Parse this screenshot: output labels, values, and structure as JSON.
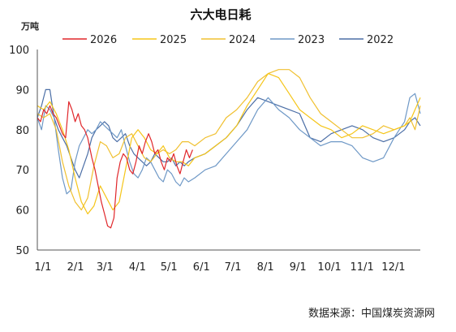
{
  "chart_data": {
    "type": "line",
    "title": "六大电日耗",
    "unit_label": "万吨",
    "source": "数据来源：中国煤炭资源网",
    "x_ticks": [
      "1/1",
      "2/1",
      "3/1",
      "4/1",
      "5/1",
      "6/1",
      "7/1",
      "8/1",
      "9/1",
      "10/1",
      "11/1",
      "12/1"
    ],
    "y_ticks": [
      "50",
      "60",
      "70",
      "80",
      "90",
      "100"
    ],
    "ylim": [
      50,
      100
    ],
    "xlim_days": [
      0,
      365
    ],
    "legend_position": "top",
    "grid": false,
    "series": [
      {
        "name": "2026",
        "color": "#e0262a",
        "x": [
          0,
          3,
          6,
          9,
          12,
          15,
          18,
          21,
          24,
          27,
          30,
          33,
          36,
          39,
          42,
          45,
          48,
          52,
          55,
          58,
          61,
          64,
          67,
          70,
          73,
          76,
          79,
          82,
          85,
          88,
          91,
          94,
          97,
          100,
          103,
          106,
          109,
          112,
          115,
          118,
          121,
          124,
          127,
          130,
          133,
          136,
          139,
          142,
          145,
          148
        ],
        "y": [
          83,
          82,
          85,
          84,
          86,
          84,
          83,
          81,
          79,
          78,
          87,
          85,
          82,
          84,
          81,
          80,
          78,
          73,
          70,
          66,
          62,
          59,
          56,
          55.5,
          58,
          68,
          72,
          74,
          73,
          70,
          69,
          72,
          76,
          74,
          77,
          79,
          77,
          74,
          75,
          72,
          70,
          73,
          72,
          74,
          71,
          69,
          72,
          75,
          73,
          75
        ]
      },
      {
        "name": "2025",
        "color": "#f5c518",
        "x": [
          0,
          6,
          12,
          18,
          24,
          30,
          36,
          42,
          48,
          54,
          60,
          66,
          72,
          78,
          84,
          90,
          96,
          102,
          108,
          114,
          120,
          126,
          132,
          138,
          144,
          150,
          160,
          170,
          180,
          190,
          200,
          210,
          220,
          230,
          240,
          250,
          260,
          270,
          280,
          290,
          300,
          310,
          320,
          330,
          340,
          350,
          355,
          360,
          365
        ],
        "y": [
          86,
          85,
          87,
          84,
          80,
          75,
          68,
          62,
          59,
          61,
          66,
          63,
          60,
          62,
          70,
          78,
          80,
          78,
          75,
          74,
          76,
          73,
          72,
          72,
          71,
          73,
          74,
          76,
          78,
          81,
          86,
          90,
          94,
          93,
          89,
          85,
          83,
          81,
          80,
          78,
          79,
          81,
          80,
          79,
          80,
          81,
          82,
          85,
          88
        ]
      },
      {
        "name": "2024",
        "color": "#f0c030",
        "x": [
          0,
          6,
          12,
          18,
          24,
          30,
          36,
          42,
          48,
          54,
          60,
          66,
          72,
          78,
          84,
          90,
          96,
          102,
          108,
          114,
          120,
          126,
          132,
          138,
          144,
          150,
          160,
          170,
          180,
          190,
          200,
          210,
          220,
          230,
          240,
          250,
          260,
          270,
          280,
          290,
          300,
          310,
          320,
          330,
          340,
          350,
          355,
          360,
          365
        ],
        "y": [
          84,
          83,
          84,
          80,
          72,
          66,
          62,
          60,
          63,
          71,
          77,
          76,
          73,
          74,
          78,
          79,
          76,
          73,
          72,
          74,
          75,
          74,
          75,
          77,
          77,
          76,
          78,
          79,
          83,
          85,
          88,
          92,
          94,
          95,
          95,
          93,
          88,
          84,
          82,
          80,
          78,
          78,
          79,
          81,
          80,
          81,
          83,
          80,
          86
        ]
      },
      {
        "name": "2023",
        "color": "#6e98c6",
        "x": [
          0,
          4,
          8,
          12,
          16,
          20,
          24,
          28,
          32,
          36,
          40,
          44,
          48,
          52,
          56,
          60,
          64,
          68,
          72,
          76,
          80,
          84,
          88,
          92,
          96,
          100,
          104,
          108,
          112,
          116,
          120,
          124,
          128,
          132,
          136,
          140,
          144,
          150,
          160,
          170,
          180,
          190,
          200,
          210,
          220,
          230,
          240,
          250,
          260,
          270,
          280,
          290,
          300,
          310,
          320,
          330,
          340,
          350,
          355,
          360,
          365
        ],
        "y": [
          83,
          80,
          86,
          85,
          83,
          75,
          68,
          64,
          65,
          72,
          76,
          78,
          80,
          79,
          80,
          82,
          81,
          80,
          79,
          78,
          80,
          76,
          72,
          69,
          68,
          70,
          73,
          72,
          70,
          68,
          67,
          70,
          69,
          67,
          66,
          68,
          67,
          68,
          70,
          71,
          74,
          77,
          80,
          85,
          88,
          85,
          83,
          80,
          78,
          76,
          77,
          77,
          76,
          73,
          72,
          73,
          78,
          82,
          88,
          89,
          84
        ]
      },
      {
        "name": "2022",
        "color": "#4b6ea6",
        "x": [
          0,
          4,
          8,
          12,
          16,
          20,
          24,
          28,
          32,
          36,
          40,
          44,
          48,
          52,
          56,
          60,
          64,
          68,
          72,
          76,
          80,
          84,
          88,
          92,
          96,
          100,
          104,
          108,
          112,
          116,
          120,
          124,
          128,
          132,
          136,
          140,
          144,
          150,
          160,
          170,
          180,
          190,
          200,
          210,
          220,
          230,
          240,
          250,
          260,
          270,
          280,
          290,
          300,
          310,
          320,
          330,
          340,
          350,
          355,
          360,
          365
        ],
        "y": [
          83,
          86,
          90,
          90,
          83,
          80,
          78,
          76,
          73,
          70,
          68,
          71,
          74,
          78,
          80,
          81,
          82,
          81,
          78,
          77,
          78,
          79,
          76,
          74,
          73,
          72,
          71,
          72,
          74,
          73,
          72,
          72,
          73,
          71,
          72,
          71,
          72,
          73,
          74,
          76,
          78,
          81,
          85,
          88,
          87,
          86,
          85,
          84,
          78,
          77,
          79,
          80,
          81,
          80,
          78,
          77,
          78,
          80,
          82,
          83,
          81
        ]
      }
    ]
  }
}
